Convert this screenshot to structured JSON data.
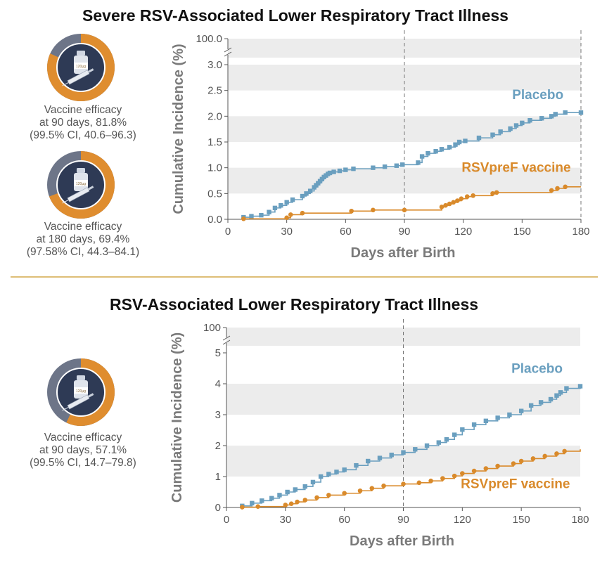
{
  "colors": {
    "placebo": "#6a9fbf",
    "vaccine": "#d98a2b",
    "band": "#ececec",
    "divider": "#d4a84a",
    "ring_gray": "#6d7588",
    "ring_orange": "#df8d2f",
    "vial_bg": "#2e3a55"
  },
  "chart_data": [
    {
      "id": "severe",
      "type": "line",
      "title": "Severe RSV-Associated Lower Respiratory Tract Illness",
      "xlabel": "Days after Birth",
      "ylabel": "Cumulative Incidence (%)",
      "xlim": [
        0,
        180
      ],
      "ylim": [
        0,
        3.2
      ],
      "xticks": [
        "0",
        "30",
        "60",
        "90",
        "120",
        "150",
        "180"
      ],
      "yticks": [
        "0.0",
        "0.5",
        "1.0",
        "1.5",
        "2.0",
        "2.5",
        "3.0"
      ],
      "ybreak_label": "100.0",
      "reference_lines_x": [
        90,
        180
      ],
      "series": [
        {
          "name": "Placebo",
          "x": [
            8,
            12,
            17,
            21,
            24,
            27,
            30,
            33,
            38,
            40,
            42,
            44,
            45,
            46,
            47,
            48,
            49,
            50,
            51,
            52,
            54,
            57,
            60,
            64,
            74,
            80,
            86,
            89,
            97,
            99,
            102,
            106,
            109,
            113,
            116,
            118,
            121,
            128,
            135,
            139,
            144,
            147,
            150,
            154,
            160,
            165,
            167,
            172,
            180
          ],
          "y": [
            0.04,
            0.06,
            0.08,
            0.14,
            0.22,
            0.27,
            0.33,
            0.38,
            0.45,
            0.5,
            0.55,
            0.62,
            0.66,
            0.7,
            0.74,
            0.78,
            0.82,
            0.85,
            0.88,
            0.9,
            0.92,
            0.94,
            0.96,
            0.98,
            1.0,
            1.02,
            1.04,
            1.06,
            1.1,
            1.22,
            1.28,
            1.32,
            1.36,
            1.4,
            1.45,
            1.5,
            1.52,
            1.58,
            1.64,
            1.7,
            1.76,
            1.82,
            1.87,
            1.92,
            1.96,
            2.0,
            2.04,
            2.07,
            2.07
          ],
          "label_x": 158,
          "label_y": 2.33
        },
        {
          "name": "RSVpreF vaccine",
          "x": [
            8,
            30,
            32,
            38,
            63,
            74,
            90,
            109,
            111,
            113,
            115,
            117,
            119,
            122,
            125,
            135,
            137,
            165,
            168,
            172,
            180
          ],
          "y": [
            0.01,
            0.03,
            0.09,
            0.12,
            0.16,
            0.18,
            0.18,
            0.24,
            0.27,
            0.3,
            0.33,
            0.36,
            0.4,
            0.44,
            0.46,
            0.5,
            0.52,
            0.56,
            0.6,
            0.63,
            0.63
          ],
          "label_x": 147,
          "label_y": 0.92
        }
      ]
    },
    {
      "id": "any",
      "type": "line",
      "title": "RSV-Associated Lower Respiratory Tract Illness",
      "xlabel": "Days after Birth",
      "ylabel": "Cumulative Incidence (%)",
      "xlim": [
        0,
        180
      ],
      "ylim": [
        0,
        5.5
      ],
      "xticks": [
        "0",
        "30",
        "60",
        "90",
        "120",
        "150",
        "180"
      ],
      "yticks": [
        "0",
        "1",
        "2",
        "3",
        "4",
        "5"
      ],
      "ybreak_label": "100",
      "reference_lines_x": [
        90
      ],
      "series": [
        {
          "name": "Placebo",
          "x": [
            8,
            13,
            18,
            23,
            27,
            31,
            35,
            40,
            44,
            48,
            52,
            56,
            60,
            66,
            72,
            78,
            84,
            90,
            96,
            102,
            108,
            112,
            116,
            120,
            126,
            132,
            138,
            144,
            150,
            155,
            160,
            165,
            168,
            170,
            173,
            180
          ],
          "y": [
            0.05,
            0.14,
            0.22,
            0.3,
            0.4,
            0.5,
            0.58,
            0.68,
            0.82,
            1.0,
            1.08,
            1.15,
            1.22,
            1.36,
            1.5,
            1.6,
            1.7,
            1.78,
            1.88,
            2.0,
            2.1,
            2.2,
            2.35,
            2.52,
            2.68,
            2.8,
            2.9,
            3.0,
            3.12,
            3.3,
            3.4,
            3.5,
            3.62,
            3.72,
            3.85,
            3.92
          ],
          "label_x": 158,
          "label_y": 4.35
        },
        {
          "name": "RSVpreF vaccine",
          "x": [
            8,
            16,
            30,
            33,
            36,
            40,
            46,
            52,
            60,
            68,
            74,
            80,
            90,
            98,
            104,
            110,
            116,
            120,
            126,
            132,
            138,
            146,
            150,
            156,
            162,
            168,
            172,
            180
          ],
          "y": [
            0.01,
            0.03,
            0.08,
            0.12,
            0.18,
            0.24,
            0.32,
            0.4,
            0.46,
            0.54,
            0.62,
            0.7,
            0.76,
            0.8,
            0.86,
            0.94,
            1.02,
            1.1,
            1.18,
            1.26,
            1.34,
            1.42,
            1.5,
            1.58,
            1.66,
            1.74,
            1.82,
            1.88
          ],
          "label_x": 147,
          "label_y": 0.62
        }
      ]
    }
  ],
  "efficacy": [
    {
      "lines": [
        "Vaccine efficacy",
        "at 90 days, 81.8%",
        "(99.5% CI, 40.6–96.3)"
      ],
      "value": 81.8
    },
    {
      "lines": [
        "Vaccine efficacy",
        "at 180 days, 69.4%",
        "(97.58% CI, 44.3–84.1)"
      ],
      "value": 69.4
    },
    {
      "lines": [
        "Vaccine efficacy",
        "at 90 days, 57.1%",
        "(99.5% CI, 14.7–79.8)"
      ],
      "value": 57.1
    }
  ],
  "vial_label": "120µg"
}
